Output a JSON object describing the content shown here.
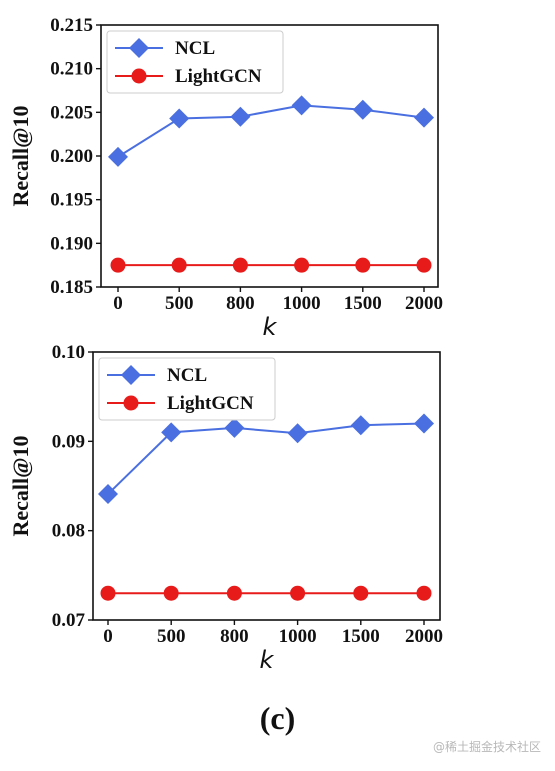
{
  "colors": {
    "ncl": "#4a6fe0",
    "lightgcn": "#e81b1b"
  },
  "chart_data": [
    {
      "type": "line",
      "xlabel": "k",
      "ylabel": "Recall@10",
      "categories": [
        "0",
        "500",
        "800",
        "1000",
        "1500",
        "2000"
      ],
      "ylim": [
        0.185,
        0.215
      ],
      "yticks": [
        "0.185",
        "0.190",
        "0.195",
        "0.200",
        "0.205",
        "0.210",
        "0.215"
      ],
      "legend_position": "top-left",
      "series": [
        {
          "name": "NCL",
          "values": [
            0.1999,
            0.2043,
            0.2045,
            0.2058,
            0.2053,
            0.2044
          ]
        },
        {
          "name": "LightGCN",
          "values": [
            0.1875,
            0.1875,
            0.1875,
            0.1875,
            0.1875,
            0.1875
          ]
        }
      ]
    },
    {
      "type": "line",
      "xlabel": "k",
      "ylabel": "Recall@10",
      "categories": [
        "0",
        "500",
        "800",
        "1000",
        "1500",
        "2000"
      ],
      "ylim": [
        0.07,
        0.1
      ],
      "yticks": [
        "0.07",
        "0.08",
        "0.09",
        "0.10"
      ],
      "legend_position": "top-left",
      "series": [
        {
          "name": "NCL",
          "values": [
            0.0841,
            0.091,
            0.0915,
            0.0909,
            0.0918,
            0.092
          ]
        },
        {
          "name": "LightGCN",
          "values": [
            0.073,
            0.073,
            0.073,
            0.073,
            0.073,
            0.073
          ]
        }
      ]
    }
  ],
  "caption": "(c)",
  "watermark": "@稀土掘金技术社区"
}
